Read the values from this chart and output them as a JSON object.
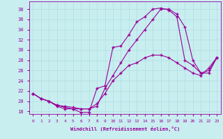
{
  "xlabel": "Windchill (Refroidissement éolien,°C)",
  "xlim": [
    -0.5,
    23.5
  ],
  "ylim": [
    17.5,
    39.5
  ],
  "xticks": [
    0,
    1,
    2,
    3,
    4,
    5,
    6,
    7,
    8,
    9,
    10,
    11,
    12,
    13,
    14,
    15,
    16,
    17,
    18,
    19,
    20,
    21,
    22,
    23
  ],
  "yticks": [
    18,
    20,
    22,
    24,
    26,
    28,
    30,
    32,
    34,
    36,
    38
  ],
  "background_color": "#c8eef0",
  "grid_color": "#b0dde0",
  "line_color": "#990099",
  "line1_x": [
    0,
    1,
    2,
    3,
    4,
    5,
    6,
    7,
    8,
    9,
    10,
    11,
    12,
    13,
    14,
    15,
    16,
    17,
    18,
    19,
    20,
    21,
    22,
    23
  ],
  "line1_y": [
    21.5,
    20.5,
    20.0,
    19.0,
    18.5,
    18.5,
    17.8,
    17.8,
    22.5,
    23.0,
    30.5,
    30.8,
    33.0,
    35.5,
    36.5,
    38.0,
    38.2,
    37.8,
    36.5,
    28.0,
    27.0,
    25.5,
    26.0,
    28.5
  ],
  "line2_x": [
    0,
    1,
    2,
    3,
    4,
    5,
    6,
    7,
    8,
    9,
    10,
    11,
    12,
    13,
    14,
    15,
    16,
    17,
    18,
    19,
    20,
    21,
    22,
    23
  ],
  "line2_y": [
    21.5,
    20.5,
    20.0,
    19.2,
    18.8,
    18.5,
    18.5,
    18.5,
    19.5,
    21.5,
    24.0,
    25.5,
    27.0,
    27.5,
    28.5,
    29.0,
    29.0,
    28.5,
    27.5,
    26.5,
    25.5,
    25.0,
    26.5,
    28.5
  ],
  "line3_x": [
    0,
    1,
    2,
    3,
    4,
    5,
    6,
    7,
    8,
    9,
    10,
    11,
    12,
    13,
    14,
    15,
    16,
    17,
    18,
    19,
    20,
    21,
    22,
    23
  ],
  "line3_y": [
    21.5,
    20.5,
    20.0,
    19.2,
    19.0,
    18.8,
    18.5,
    18.5,
    19.0,
    22.5,
    25.0,
    27.5,
    30.0,
    32.0,
    34.0,
    36.0,
    38.0,
    38.0,
    37.0,
    34.5,
    28.0,
    25.5,
    25.5,
    28.5
  ]
}
